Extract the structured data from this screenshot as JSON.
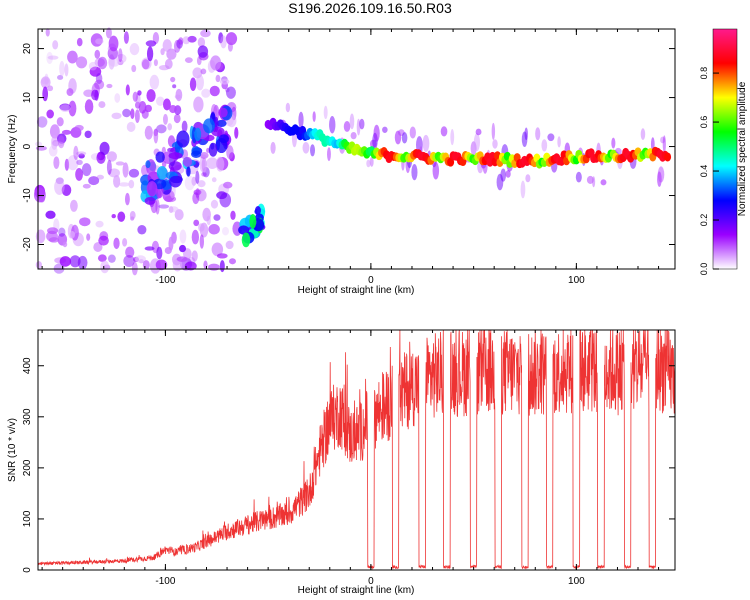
{
  "title": "S196.2026.109.16.50.R03",
  "chart_data": [
    {
      "type": "heatmap",
      "xlabel": "Height of straight line (km)",
      "ylabel": "Frequency (Hz)",
      "xlim": [
        -162,
        148
      ],
      "ylim": [
        -25,
        24
      ],
      "xticks": [
        "-100",
        "0",
        "100"
      ],
      "xtick_values": [
        -100,
        0,
        100
      ],
      "yticks": [
        "-20",
        "-10",
        "0",
        "10",
        "20"
      ],
      "ytick_values": [
        -20,
        -10,
        0,
        10,
        20
      ],
      "colorbar": {
        "label": "Normalized spectral amplitude",
        "range": [
          0,
          0.98
        ],
        "ticks": [
          "0.0",
          "0.2",
          "0.4",
          "0.6",
          "0.8"
        ],
        "tick_values": [
          0,
          0.2,
          0.4,
          0.6,
          0.8
        ],
        "colors": [
          "#ffffff",
          "#9a00ff",
          "#0000ff",
          "#00ffff",
          "#00ff00",
          "#ffff00",
          "#ff0000",
          "#ff1a8c"
        ]
      },
      "features": [
        {
          "name": "noise region",
          "x_range": [
            -162,
            -65
          ],
          "frequency_range": [
            -25,
            24
          ],
          "amplitude": 0.15
        },
        {
          "name": "rising track",
          "x": [
            -110,
            -85,
            -70
          ],
          "frequency": [
            -8,
            0,
            5
          ],
          "amplitude": 0.3
        },
        {
          "name": "low dip",
          "x": [
            -62,
            -57,
            -53
          ],
          "frequency": [
            -18,
            -16,
            -14
          ],
          "amplitude": 0.4
        },
        {
          "name": "main track",
          "x": [
            -50,
            -35,
            -25,
            -10,
            0,
            20,
            40,
            60,
            80,
            100,
            120,
            145
          ],
          "frequency": [
            5,
            3,
            2,
            -0.5,
            -1.5,
            -2,
            -2.5,
            -2.5,
            -3,
            -2,
            -2,
            -1.5
          ],
          "amplitude": 0.9
        }
      ]
    },
    {
      "type": "line",
      "xlabel": "Height of straight line (km)",
      "ylabel": "SNR (10 * v/v)",
      "xlim": [
        -162,
        148
      ],
      "ylim": [
        0,
        470
      ],
      "xticks": [
        "-100",
        "0",
        "100"
      ],
      "xtick_values": [
        -100,
        0,
        100
      ],
      "yticks": [
        "0",
        "100",
        "200",
        "300",
        "400"
      ],
      "ytick_values": [
        0,
        100,
        200,
        300,
        400
      ],
      "color": "#ee3333",
      "series": [
        {
          "name": "SNR envelope",
          "x": [
            -162,
            -140,
            -120,
            -105,
            -100,
            -95,
            -85,
            -70,
            -55,
            -40,
            -30,
            -25,
            -20,
            -15,
            -10,
            -5,
            0,
            10,
            20,
            30,
            40,
            60,
            80,
            100,
            120,
            140,
            148
          ],
          "y": [
            12,
            15,
            18,
            25,
            40,
            35,
            45,
            75,
            95,
            110,
            150,
            230,
            290,
            310,
            260,
            270,
            300,
            330,
            360,
            380,
            385,
            390,
            385,
            395,
            390,
            400,
            380
          ]
        }
      ],
      "dropouts_x": [
        0,
        12,
        25,
        37,
        50,
        62,
        75,
        87,
        100,
        112,
        125,
        137
      ]
    }
  ]
}
